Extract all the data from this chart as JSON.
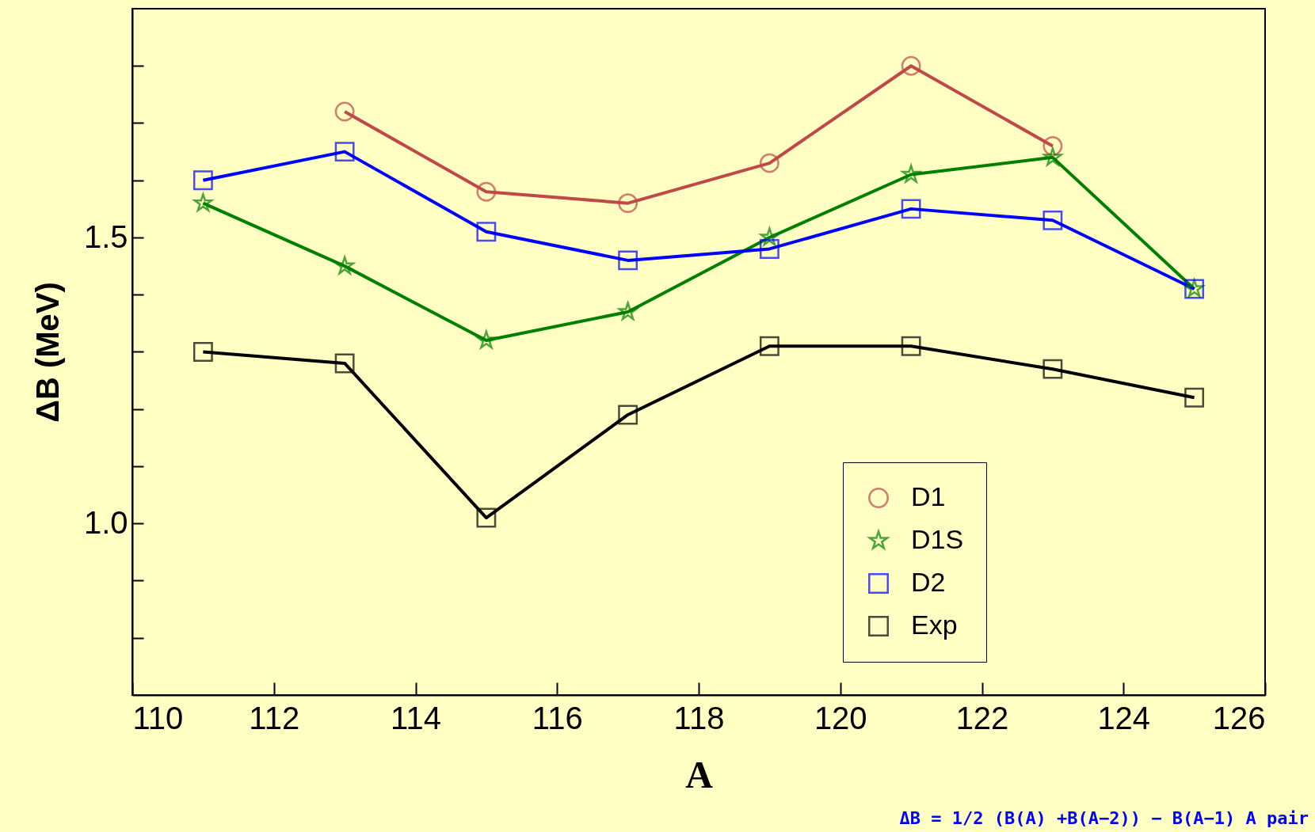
{
  "chart_data": {
    "type": "line",
    "xlabel": "A",
    "ylabel": "ΔB (MeV)",
    "xlim": [
      110,
      126
    ],
    "xticks": [
      110,
      112,
      114,
      116,
      118,
      120,
      122,
      124,
      126
    ],
    "ylim": [
      0.7,
      1.9
    ],
    "yticks": [
      {
        "value": 0.8,
        "label": null
      },
      {
        "value": 0.9,
        "label": null
      },
      {
        "value": 1,
        "label": "1.0"
      },
      {
        "value": 1.1,
        "label": null
      },
      {
        "value": 1.2,
        "label": null
      },
      {
        "value": 1.3,
        "label": null
      },
      {
        "value": 1.4,
        "label": null
      },
      {
        "value": 1.5,
        "label": "1.5"
      },
      {
        "value": 1.6,
        "label": null
      },
      {
        "value": 1.7,
        "label": null
      },
      {
        "value": 1.8,
        "label": null
      }
    ],
    "grid": false,
    "legend": "bottom right",
    "line_style": "solid",
    "x": [
      111,
      113,
      115,
      117,
      119,
      121,
      123,
      125
    ],
    "series": [
      {
        "name": "D1",
        "color": "#c04848",
        "marker": "circle",
        "values": [
          null,
          1.72,
          1.58,
          1.56,
          1.63,
          1.8,
          1.66,
          null
        ]
      },
      {
        "name": "D1S",
        "color": "#008000",
        "marker": "star",
        "values": [
          1.56,
          1.45,
          1.32,
          1.37,
          1.5,
          1.61,
          1.64,
          1.41
        ]
      },
      {
        "name": "D2",
        "color": "#0000ff",
        "marker": "square",
        "values": [
          1.6,
          1.65,
          1.51,
          1.46,
          1.48,
          1.55,
          1.53,
          1.41
        ]
      },
      {
        "name": "Exp",
        "color": "#000000",
        "marker": "square",
        "values": [
          1.3,
          1.28,
          1.01,
          1.19,
          1.31,
          1.31,
          1.27,
          1.22
        ]
      }
    ],
    "annotations": [
      "ΔB = 1/2 (B(A) +B(A−2)) − B(A−1)    A pair"
    ]
  }
}
